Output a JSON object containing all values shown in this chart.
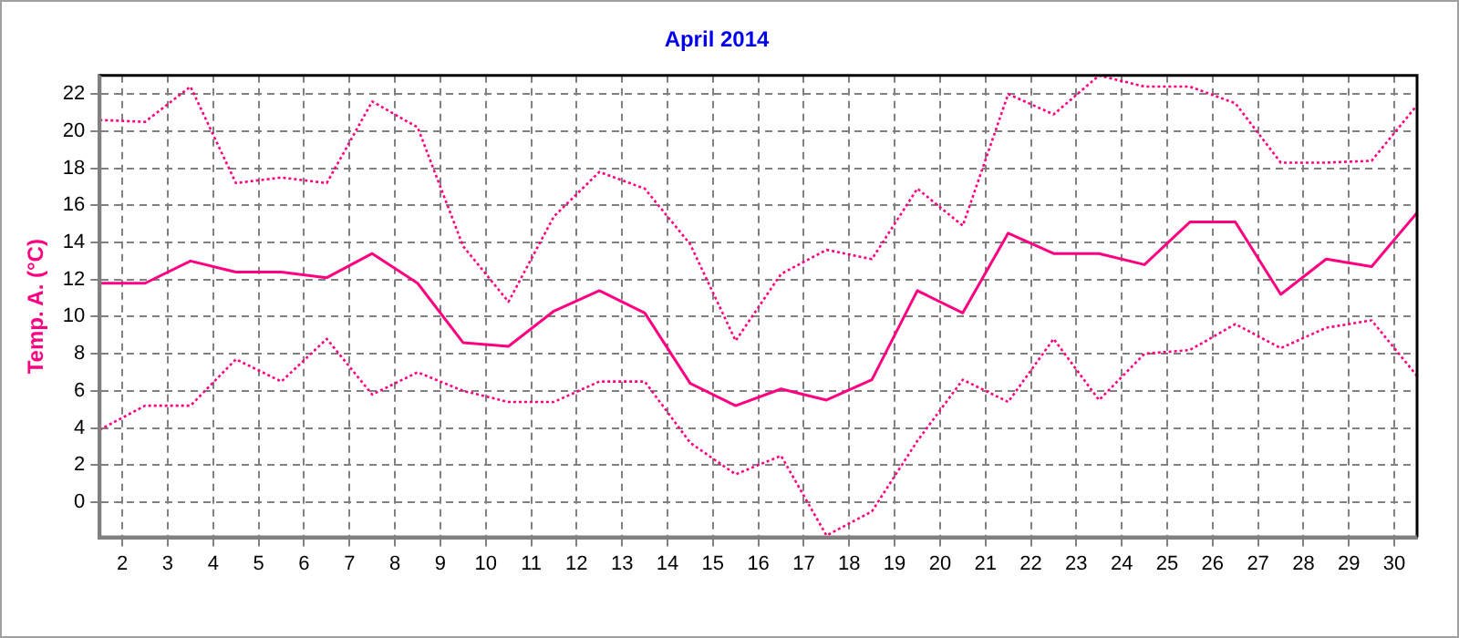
{
  "chart_data": {
    "type": "line",
    "title": "April 2014",
    "ylabel": "Temp. A. (°C)",
    "x": [
      1.5,
      2.5,
      3.5,
      4.5,
      5.5,
      6.5,
      7.5,
      8.5,
      9.5,
      10.5,
      11.5,
      12.5,
      13.5,
      14.5,
      15.5,
      16.5,
      17.5,
      18.5,
      19.5,
      20.5,
      21.5,
      22.5,
      23.5,
      24.5,
      25.5,
      26.5,
      27.5,
      28.5,
      29.5,
      30.5
    ],
    "series": [
      {
        "color": "#ff0080",
        "line_style": "dotted",
        "values": [
          20.6,
          20.5,
          22.4,
          17.2,
          17.5,
          17.2,
          21.6,
          20.2,
          13.8,
          10.8,
          15.4,
          17.8,
          16.9,
          13.9,
          8.7,
          12.3,
          13.6,
          13.1,
          16.9,
          14.9,
          22.0,
          20.9,
          23.0,
          22.4,
          22.4,
          21.5,
          18.3,
          18.3,
          18.4,
          21.4
        ]
      },
      {
        "color": "#ff0080",
        "line_style": "solid",
        "values": [
          11.8,
          11.8,
          13.0,
          12.4,
          12.4,
          12.1,
          13.4,
          11.8,
          8.6,
          8.4,
          10.3,
          11.4,
          10.2,
          6.4,
          5.2,
          6.1,
          5.5,
          6.6,
          11.4,
          10.2,
          14.5,
          13.4,
          13.4,
          12.8,
          15.1,
          15.1,
          11.2,
          13.1,
          12.7,
          15.6
        ]
      },
      {
        "color": "#ff0080",
        "line_style": "dotted",
        "values": [
          3.9,
          5.2,
          5.2,
          7.7,
          6.5,
          8.8,
          5.8,
          7.0,
          6.0,
          5.4,
          5.4,
          6.5,
          6.5,
          3.2,
          1.5,
          2.5,
          -1.8,
          -0.5,
          3.3,
          6.6,
          5.4,
          8.8,
          5.5,
          8.0,
          8.2,
          9.6,
          8.3,
          9.4,
          9.8,
          6.8
        ]
      }
    ],
    "xlim": [
      1.5,
      30.5
    ],
    "xticks": [
      2,
      3,
      4,
      5,
      6,
      7,
      8,
      9,
      10,
      11,
      12,
      13,
      14,
      15,
      16,
      17,
      18,
      19,
      20,
      21,
      22,
      23,
      24,
      25,
      26,
      27,
      28,
      29,
      30
    ],
    "ylim": [
      -1.9,
      23
    ],
    "yticks": [
      0,
      2,
      4,
      6,
      8,
      10,
      12,
      14,
      16,
      18,
      20,
      22
    ],
    "grid": true,
    "legend": false,
    "marker": "none"
  }
}
